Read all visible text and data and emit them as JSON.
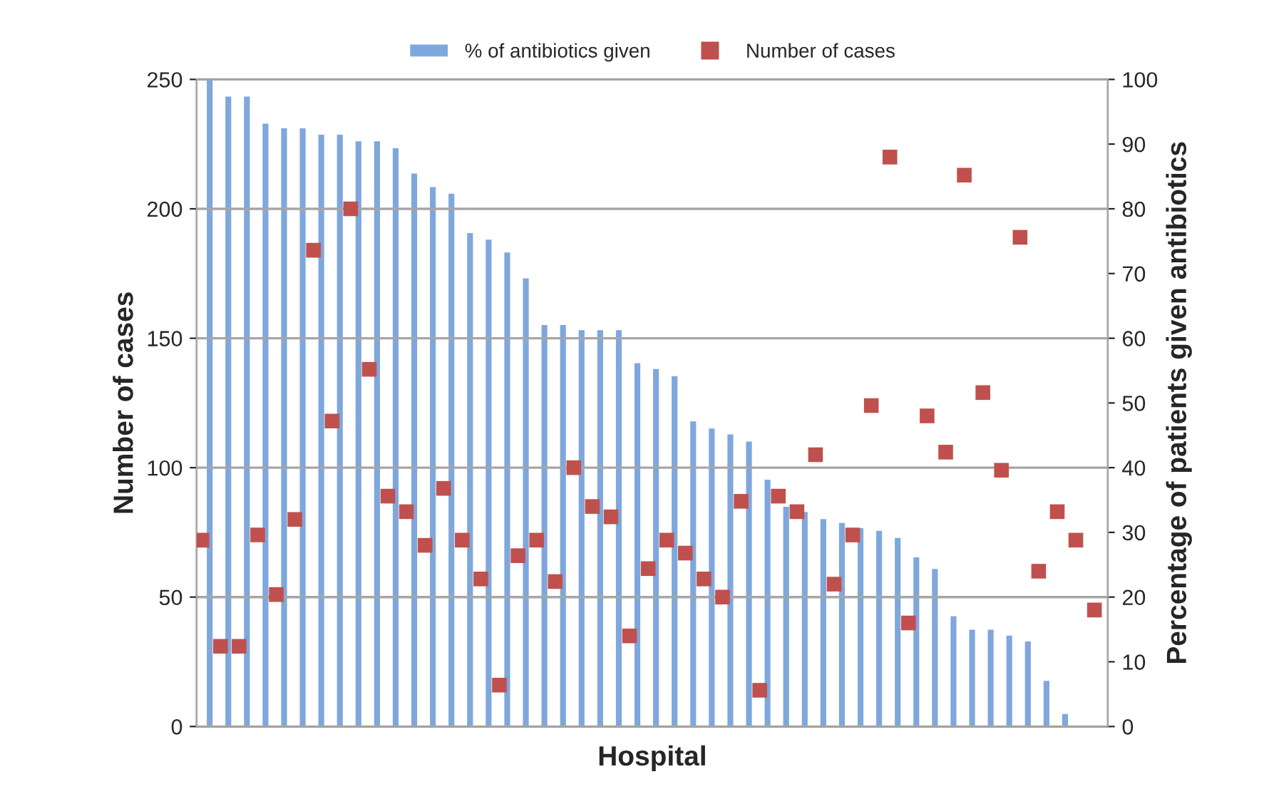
{
  "chart_data": {
    "type": "bar",
    "xlabel": "Hospital",
    "ylabel": "Number of cases",
    "y2label": "Percentage of patients given antibiotics",
    "categories": [
      null,
      null,
      null,
      null,
      null,
      null,
      null,
      null,
      null,
      null,
      null,
      null,
      null,
      null,
      null,
      null,
      null,
      null,
      null,
      null,
      null,
      null,
      null,
      null,
      null,
      null,
      null,
      null,
      null,
      null,
      null,
      null,
      null,
      null,
      null,
      null,
      null,
      null,
      null,
      null,
      null,
      null,
      null,
      null,
      null,
      null,
      null,
      null,
      null
    ],
    "series": [
      {
        "name": "% of antibiotics given",
        "axis": "y2",
        "color": "#7fa7dc",
        "values": [
          100,
          97.5,
          97.5,
          93.3,
          92.6,
          92.6,
          91.6,
          91.6,
          90.6,
          90.6,
          89.5,
          85.6,
          83.5,
          82.5,
          76.4,
          75.4,
          73.4,
          69.4,
          62.2,
          62.2,
          61.4,
          61.4,
          61.4,
          56.3,
          55.4,
          54.3,
          47.3,
          46.2,
          45.3,
          44.2,
          38.3,
          34.1,
          33.3,
          32.2,
          31.6,
          30.8,
          30.4,
          29.3,
          26.3,
          24.5,
          17.2,
          15.1,
          15.1,
          14.2,
          13.3,
          7.2,
          2.1,
          null,
          null
        ]
      },
      {
        "name": "Number of cases",
        "type": "scatter",
        "color": "#c0504d",
        "marker": "square",
        "values": [
          72,
          31,
          31,
          74,
          51,
          80,
          184,
          118,
          200,
          138,
          89,
          83,
          70,
          92,
          72,
          57,
          16,
          66,
          72,
          56,
          100,
          85,
          81,
          35,
          61,
          72,
          67,
          57,
          50,
          87,
          14,
          89,
          83,
          105,
          55,
          74,
          124,
          220,
          40,
          120,
          106,
          213,
          129,
          99,
          189,
          60,
          83,
          72,
          45
        ]
      }
    ],
    "ylim": [
      0,
      250
    ],
    "yticks": [
      0,
      50,
      100,
      150,
      200,
      250
    ],
    "y2lim": [
      0,
      100
    ],
    "y2ticks": [
      0,
      10,
      20,
      30,
      40,
      50,
      60,
      70,
      80,
      90,
      100
    ],
    "grid": "y",
    "legend": "top"
  }
}
